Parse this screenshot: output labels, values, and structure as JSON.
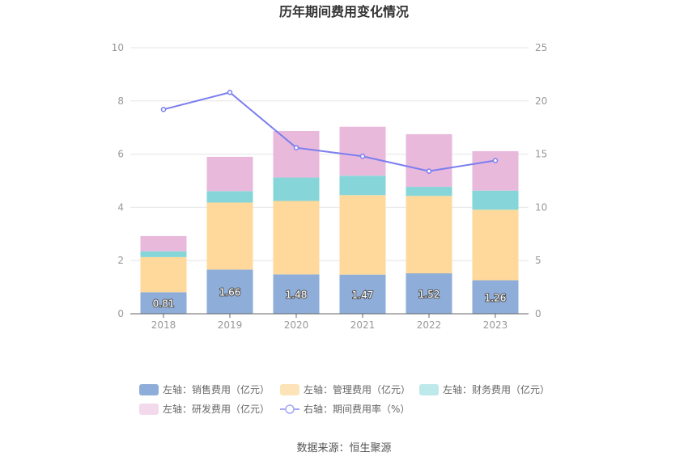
{
  "chart_data": {
    "type": "bar",
    "title": "历年期间费用变化情况",
    "categories": [
      "2018",
      "2019",
      "2020",
      "2021",
      "2022",
      "2023"
    ],
    "left_axis": {
      "ticks": [
        "0",
        "2",
        "4",
        "6",
        "8",
        "10"
      ],
      "ylim": [
        0,
        10
      ]
    },
    "right_axis": {
      "ticks": [
        "0",
        "5",
        "10",
        "15",
        "20",
        "25"
      ],
      "ylim": [
        0,
        25
      ]
    },
    "series": [
      {
        "name": "左轴：销售费用（亿元）",
        "type": "bar",
        "axis": "left",
        "color": "#8eadd9",
        "values": [
          0.81,
          1.66,
          1.48,
          1.47,
          1.52,
          1.26
        ],
        "labels": [
          "0.81",
          "1.66",
          "1.48",
          "1.47",
          "1.52",
          "1.26"
        ]
      },
      {
        "name": "左轴：管理费用（亿元）",
        "type": "bar",
        "axis": "left",
        "color": "#fed99b",
        "values": [
          1.32,
          2.52,
          2.76,
          2.99,
          2.91,
          2.65
        ]
      },
      {
        "name": "左轴：财务费用（亿元）",
        "type": "bar",
        "axis": "left",
        "color": "#86d6d9",
        "values": [
          0.22,
          0.43,
          0.88,
          0.73,
          0.34,
          0.72
        ]
      },
      {
        "name": "左轴：研发费用（亿元）",
        "type": "bar",
        "axis": "left",
        "color": "#e8b9db",
        "values": [
          0.57,
          1.29,
          1.75,
          1.84,
          1.98,
          1.48
        ]
      },
      {
        "name": "右轴：期间费用率（%）",
        "type": "line",
        "axis": "right",
        "color": "#7b7ef0",
        "values": [
          19.2,
          20.8,
          15.6,
          14.8,
          13.4,
          14.4
        ]
      }
    ],
    "legend_position": "bottom",
    "grid": true
  },
  "footer": {
    "source": "数据来源：恒生聚源"
  }
}
